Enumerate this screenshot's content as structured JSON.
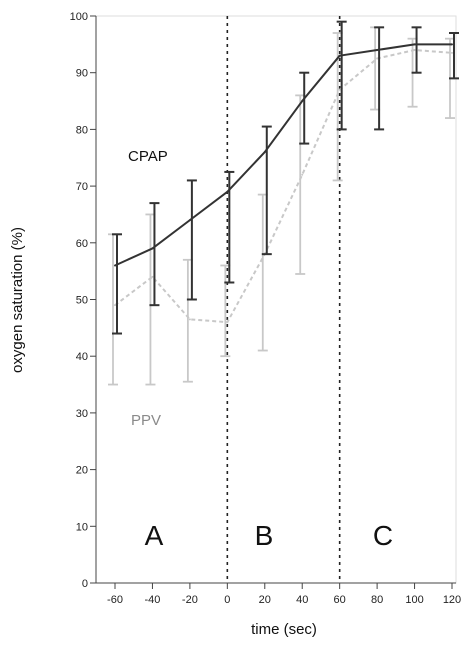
{
  "chart_data": {
    "type": "line",
    "xlabel": "time (sec)",
    "ylabel": "oxygen saturation (%)",
    "xlim": [
      -60,
      120
    ],
    "ylim": [
      0,
      100
    ],
    "x_ticks": [
      -60,
      -40,
      -20,
      0,
      20,
      40,
      60,
      80,
      100,
      120
    ],
    "y_ticks": [
      0,
      10,
      20,
      30,
      40,
      50,
      60,
      70,
      80,
      90,
      100
    ],
    "grid": false,
    "series": [
      {
        "name": "CPAP",
        "color": "#333333",
        "line_style": "solid",
        "x": [
          -60,
          -40,
          -20,
          0,
          20,
          40,
          60,
          80,
          100,
          120
        ],
        "values": [
          56,
          59,
          64,
          69,
          76,
          85,
          93,
          94,
          95,
          95
        ],
        "error_low": [
          44,
          49,
          50,
          53,
          58,
          77.5,
          80,
          80,
          90,
          89
        ],
        "error_high": [
          61.5,
          67,
          71,
          72.5,
          80.5,
          90,
          99,
          98,
          98,
          97
        ]
      },
      {
        "name": "PPV",
        "color": "#c8c8c8",
        "line_style": "dashed",
        "x": [
          -60,
          -40,
          -20,
          0,
          20,
          40,
          60,
          80,
          100,
          120
        ],
        "values": [
          49,
          54,
          46.5,
          46,
          58,
          72,
          87,
          92.5,
          94,
          93.5
        ],
        "error_low": [
          35,
          35,
          35.5,
          40,
          41,
          54.5,
          71,
          83.5,
          84,
          82
        ],
        "error_high": [
          61.5,
          65,
          57,
          56,
          68.5,
          86,
          97,
          98,
          96,
          96
        ]
      }
    ],
    "vertical_lines": [
      0,
      60
    ],
    "regions": [
      {
        "label": "A",
        "x": -30
      },
      {
        "label": "B",
        "x": 30
      },
      {
        "label": "C",
        "x": 90
      }
    ]
  }
}
